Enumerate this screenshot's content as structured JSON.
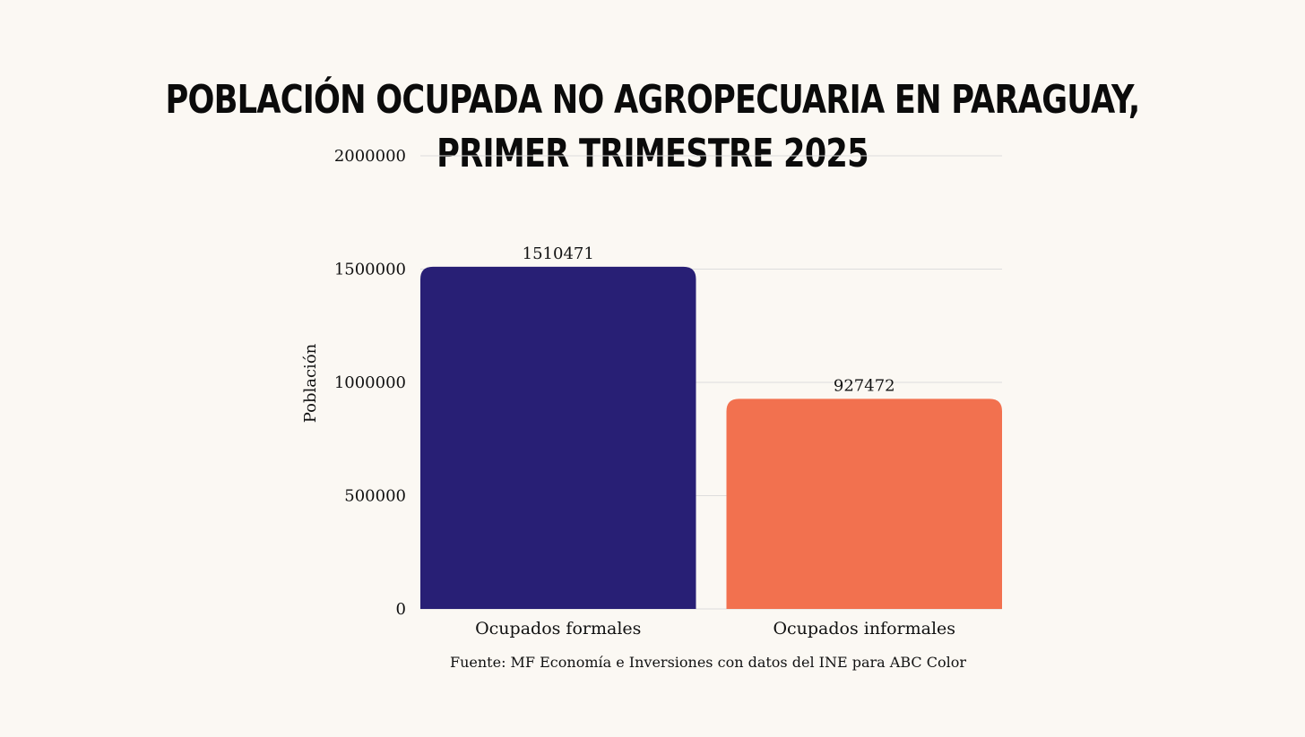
{
  "colors": {
    "background": "#fbf8f3",
    "grid": "#dddddd",
    "bar_formales": "#281f75",
    "bar_informales": "#f2714f",
    "text": "#111111"
  },
  "chart_data": {
    "type": "bar",
    "title": "Población ocupada no agropecuaria en Paraguay, primer trimestre 2025",
    "xlabel": "",
    "ylabel": "Población",
    "ylim": [
      0,
      2000000
    ],
    "yticks": [
      0,
      500000,
      1000000,
      1500000,
      2000000
    ],
    "ytick_labels": [
      "0",
      "500000",
      "1000000",
      "1500000",
      "2000000"
    ],
    "grid": true,
    "categories": [
      "Ocupados formales",
      "Ocupados informales"
    ],
    "values": [
      1510471,
      927472
    ],
    "data_labels": [
      "1510471",
      "927472"
    ],
    "bar_colors": [
      "#281f75",
      "#f2714f"
    ],
    "source": "Fuente: MF Economía e Inversiones con datos del INE para ABC Color"
  }
}
